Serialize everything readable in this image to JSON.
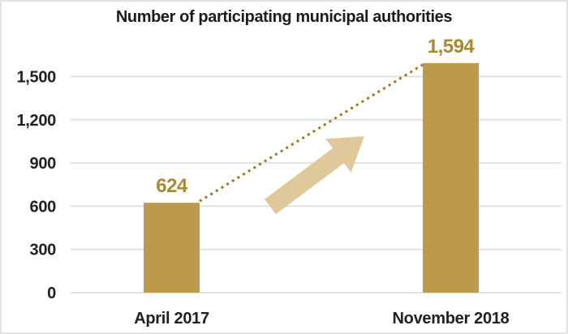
{
  "page": {
    "background": "#FFFFFF",
    "border_color": "#E3E3E3"
  },
  "chart_data": {
    "type": "bar",
    "title": "Number of participating municipal authorities",
    "categories": [
      "April 2017",
      "November 2018"
    ],
    "values": [
      624,
      1594
    ],
    "value_labels": [
      "624",
      "1,594"
    ],
    "yticks": [
      0,
      300,
      600,
      900,
      1200,
      1500
    ],
    "ytick_labels": [
      "0",
      "300",
      "600",
      "900",
      "1,200",
      "1,500"
    ],
    "ylim": [
      0,
      1650
    ],
    "xlabel": "",
    "ylabel": "",
    "grid": "horizontal",
    "legend": "none",
    "annotations": [
      {
        "id": "trend-line",
        "type": "dotted-line",
        "from": "top of April 2017 bar",
        "to": "top of November 2018 bar"
      },
      {
        "id": "growth-arrow",
        "type": "block-arrow",
        "direction": "up-right"
      }
    ],
    "colors": {
      "bar": "#BC9A4B",
      "value_label": "#A98A33",
      "dotted_line": "#9A7918",
      "arrow_fill": "#DFC99B",
      "gridline": "#DBDBDB",
      "axis_text": "#212121",
      "title_text": "#1C1C1C"
    }
  }
}
